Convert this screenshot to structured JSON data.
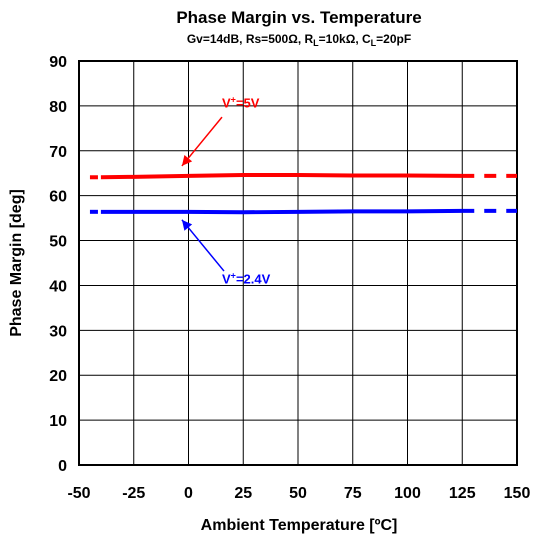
{
  "chart_data": {
    "type": "line",
    "title": "Phase Margin vs. Temperature",
    "subtitle": {
      "gv": "Gv=14dB, Rs=500Ω, R",
      "rl_sub": "L",
      "rl_val": "=10kΩ, C",
      "cl_sub": "L",
      "cl_val": "=20pF"
    },
    "xlabel": "Ambient Temperature [ºC]",
    "ylabel": "Phase Margin [deg]",
    "xlim": [
      -50,
      150
    ],
    "ylim": [
      0,
      90
    ],
    "xticks": [
      -50,
      -25,
      0,
      25,
      50,
      75,
      100,
      125,
      150
    ],
    "yticks": [
      0,
      10,
      20,
      30,
      40,
      50,
      60,
      70,
      80,
      90
    ],
    "grid": true,
    "series": [
      {
        "color": "#ff0000",
        "label": {
          "prefix": "V",
          "sup": "+",
          "suffix": "=5V"
        },
        "solid": {
          "x": [
            -40,
            -25,
            0,
            25,
            50,
            75,
            100,
            125
          ],
          "y": [
            64.1,
            64.2,
            64.4,
            64.6,
            64.6,
            64.5,
            64.5,
            64.4
          ]
        },
        "dashed": {
          "x": [
            -45,
            -40
          ],
          "y": [
            64.1,
            64.1
          ]
        },
        "dashed_tail": {
          "x": [
            125,
            150
          ],
          "y": [
            64.4,
            64.4
          ]
        }
      },
      {
        "color": "#0000ff",
        "label": {
          "prefix": "V",
          "sup": "+",
          "suffix": "=2.4V"
        },
        "solid": {
          "x": [
            -40,
            -25,
            0,
            25,
            50,
            75,
            100,
            125
          ],
          "y": [
            56.4,
            56.4,
            56.4,
            56.3,
            56.4,
            56.5,
            56.5,
            56.6
          ]
        },
        "dashed": {
          "x": [
            -45,
            -40
          ],
          "y": [
            56.4,
            56.4
          ]
        },
        "dashed_tail": {
          "x": [
            125,
            150
          ],
          "y": [
            56.6,
            56.6
          ]
        }
      }
    ]
  }
}
